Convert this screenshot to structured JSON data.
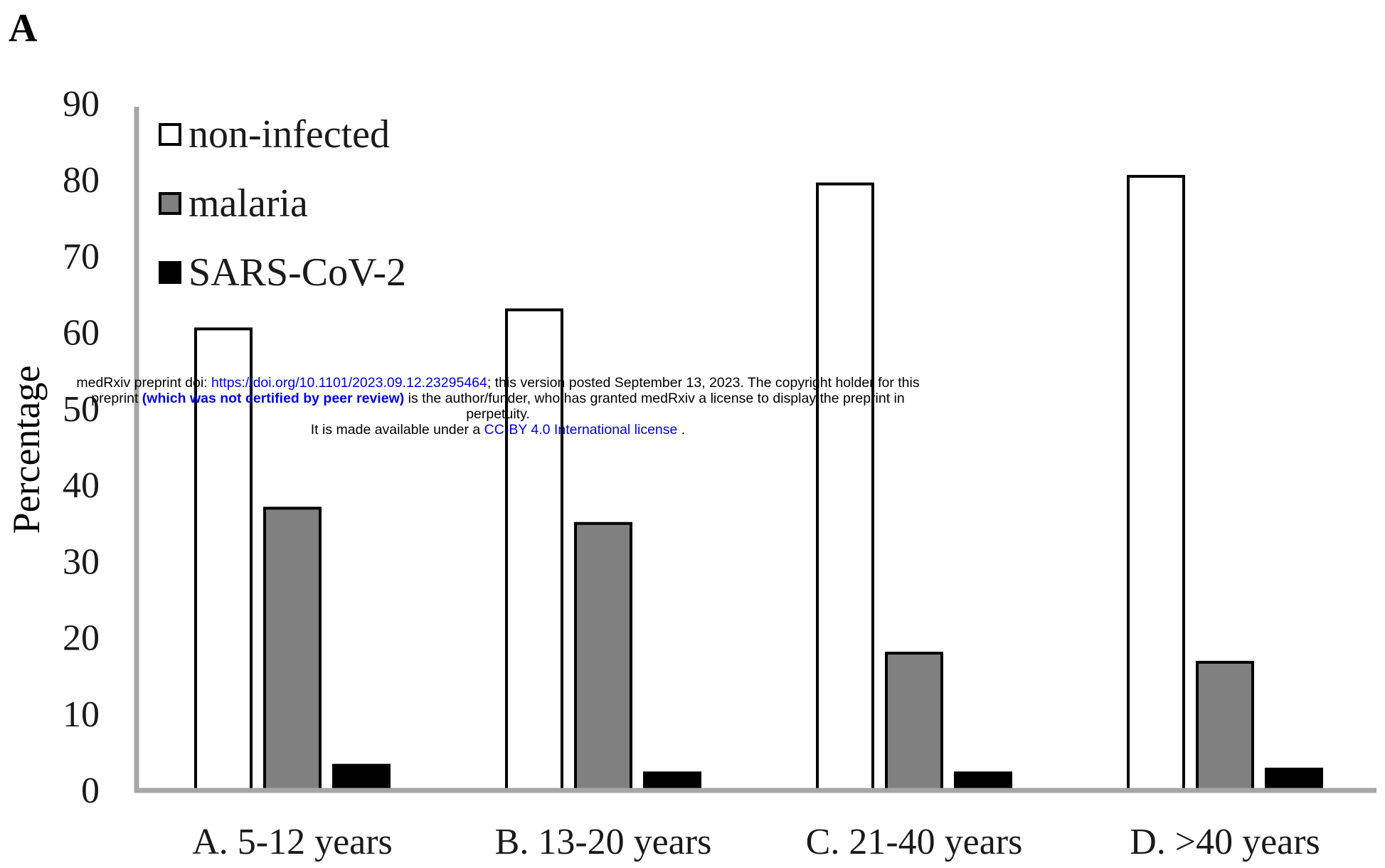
{
  "panel_label": "A",
  "chart_data": {
    "type": "bar",
    "title": "",
    "xlabel": "",
    "ylabel": "Percentage",
    "ylim": [
      0,
      90
    ],
    "yticks": [
      "0",
      "10",
      "20",
      "30",
      "40",
      "50",
      "60",
      "70",
      "80",
      "90"
    ],
    "categories": [
      "A. 5-12 years",
      "B. 13-20 years",
      "C. 21-40 years",
      "D. >40 years"
    ],
    "series": [
      {
        "name": "non-infected",
        "color": "#ffffff",
        "values": [
          60.5,
          63,
          79.5,
          80.5
        ]
      },
      {
        "name": "malaria",
        "color": "#808080",
        "values": [
          37,
          35,
          18,
          16.8
        ]
      },
      {
        "name": "SARS-CoV-2",
        "color": "#000000",
        "values": [
          3.3,
          2.3,
          2.3,
          2.8
        ]
      }
    ],
    "legend_position": "top-left",
    "grid": false
  },
  "banner": {
    "line1_prefix": "medRxiv preprint doi: ",
    "doi_link": "https://doi.org/10.1101/2023.09.12.23295464",
    "line1_suffix": "; this version posted September 13, 2023. The copyright holder for this",
    "line2_prefix": "preprint ",
    "line2_bold": "(which was not certified by peer review)",
    "line2_suffix": " is the author/funder, who has granted medRxiv a license to display the preprint in",
    "line3": "perpetuity.",
    "line4_prefix": "It is made available under a ",
    "license_link": "CC-BY 4.0 International license",
    "line4_suffix": " ."
  }
}
